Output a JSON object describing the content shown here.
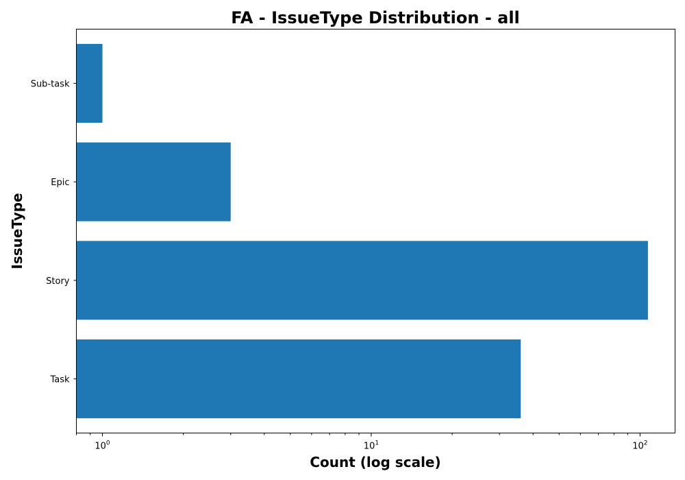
{
  "chart_data": {
    "type": "bar",
    "orientation": "horizontal",
    "title": "FA - IssueType Distribution - all",
    "xlabel": "Count (log scale)",
    "ylabel": "IssueType",
    "x_scale": "log",
    "xlim": [
      0.8,
      135
    ],
    "categories": [
      "Task",
      "Story",
      "Epic",
      "Sub-task"
    ],
    "values": [
      36,
      107,
      3,
      1
    ],
    "bar_color": "#1f77b4",
    "x_ticks": [
      {
        "value": 1,
        "base": "10",
        "exp": "0"
      },
      {
        "value": 10,
        "base": "10",
        "exp": "1"
      },
      {
        "value": 100,
        "base": "10",
        "exp": "2"
      }
    ],
    "grid": false,
    "legend": "none"
  }
}
